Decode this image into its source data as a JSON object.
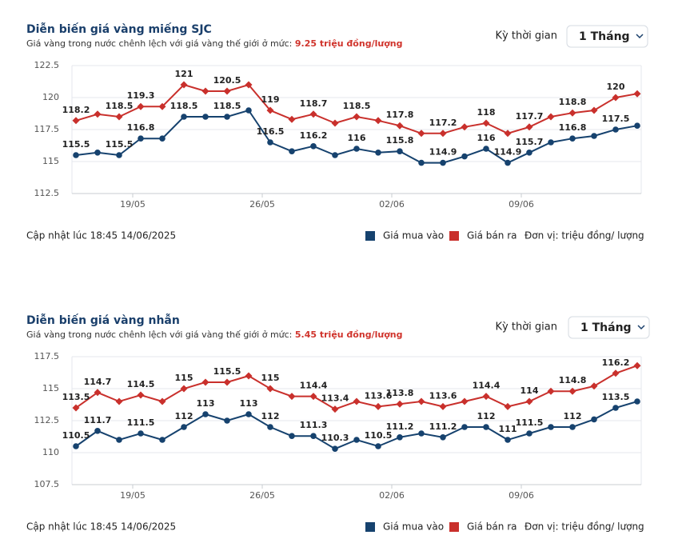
{
  "chart_data": [
    {
      "type": "line",
      "title": "Diễn biến giá vàng miếng SJC",
      "subtitle": "Giá vàng trong nước chênh lệch với giá vàng thế giới ở mức:",
      "subtitle_highlight": "9.25 triệu đồng/lượng",
      "period_label": "Kỳ thời gian",
      "period_value": "1 Tháng",
      "updated": "Cập nhật lúc 18:45 14/06/2025",
      "unit": "Đơn vị: triệu đồng/ lượng",
      "categories": [
        null,
        null,
        null,
        "19/05",
        null,
        null,
        null,
        null,
        null,
        "26/05",
        null,
        null,
        null,
        null,
        null,
        "02/06",
        null,
        null,
        null,
        null,
        null,
        "09/06",
        null,
        null,
        null,
        null,
        null
      ],
      "ylim": [
        112.5,
        122.5
      ],
      "yticks": [
        112.5,
        115,
        117.5,
        120,
        122.5
      ],
      "grid": true,
      "series": [
        {
          "name": "Giá mua vào",
          "color": "#16426e",
          "values": [
            115.5,
            115.7,
            115.5,
            116.8,
            116.8,
            118.5,
            118.5,
            118.5,
            119,
            116.5,
            115.8,
            116.2,
            115.5,
            116,
            115.7,
            115.8,
            114.9,
            114.9,
            115.4,
            116,
            114.9,
            115.7,
            116.5,
            116.8,
            117,
            117.5,
            117.8
          ],
          "value_labels": [
            "115.5",
            null,
            "115.5",
            "116.8",
            null,
            "118.5",
            null,
            "118.5",
            null,
            "116.5",
            null,
            "116.2",
            null,
            "116",
            null,
            "115.8",
            null,
            "114.9",
            null,
            "116",
            "114.9",
            "115.7",
            null,
            "116.8",
            null,
            "117.5",
            null
          ]
        },
        {
          "name": "Giá bán ra",
          "color": "#c9302c",
          "values": [
            118.2,
            118.7,
            118.5,
            119.3,
            119.3,
            121,
            120.5,
            120.5,
            121,
            119,
            118.3,
            118.7,
            118,
            118.5,
            118.2,
            117.8,
            117.2,
            117.2,
            117.7,
            118,
            117.2,
            117.7,
            118.5,
            118.8,
            119,
            120,
            120.3
          ],
          "value_labels": [
            "118.2",
            null,
            "118.5",
            "119.3",
            null,
            "121",
            null,
            "120.5",
            null,
            "119",
            null,
            "118.7",
            null,
            "118.5",
            null,
            "117.8",
            null,
            "117.2",
            null,
            "118",
            null,
            "117.7",
            null,
            "118.8",
            null,
            "120",
            null
          ]
        }
      ]
    },
    {
      "type": "line",
      "title": "Diễn biến giá vàng nhẫn",
      "subtitle": "Giá vàng trong nước chênh lệch với giá vàng thế giới ở mức:",
      "subtitle_highlight": "5.45 triệu đồng/lượng",
      "period_label": "Kỳ thời gian",
      "period_value": "1 Tháng",
      "updated": "Cập nhật lúc 18:45 14/06/2025",
      "unit": "Đơn vị: triệu đồng/ lượng",
      "categories": [
        null,
        null,
        null,
        "19/05",
        null,
        null,
        null,
        null,
        null,
        "26/05",
        null,
        null,
        null,
        null,
        null,
        "02/06",
        null,
        null,
        null,
        null,
        null,
        "09/06",
        null,
        null,
        null,
        null,
        null
      ],
      "ylim": [
        107.5,
        117.5
      ],
      "yticks": [
        107.5,
        110,
        112.5,
        115,
        117.5
      ],
      "grid": true,
      "series": [
        {
          "name": "Giá mua vào",
          "color": "#16426e",
          "values": [
            110.5,
            111.7,
            111,
            111.5,
            111,
            112,
            113,
            112.5,
            113,
            112,
            111.3,
            111.3,
            110.3,
            111,
            110.5,
            111.2,
            111.5,
            111.2,
            112,
            112,
            111,
            111.5,
            112,
            112,
            112.6,
            113.5,
            114
          ],
          "value_labels": [
            "110.5",
            "111.7",
            null,
            "111.5",
            null,
            "112",
            "113",
            null,
            "113",
            "112",
            null,
            "111.3",
            "110.3",
            null,
            "110.5",
            "111.2",
            null,
            "111.2",
            null,
            "112",
            "111",
            "111.5",
            null,
            "112",
            null,
            "113.5",
            null
          ]
        },
        {
          "name": "Giá bán ra",
          "color": "#c9302c",
          "values": [
            113.5,
            114.7,
            114,
            114.5,
            114,
            115,
            115.5,
            115.5,
            116,
            115,
            114.4,
            114.4,
            113.4,
            114,
            113.6,
            113.8,
            114,
            113.6,
            114,
            114.4,
            113.6,
            114,
            114.8,
            114.8,
            115.2,
            116.2,
            116.8
          ],
          "value_labels": [
            "113.5",
            "114.7",
            null,
            "114.5",
            null,
            "115",
            null,
            "115.5",
            null,
            "115",
            null,
            "114.4",
            "113.4",
            null,
            "113.6",
            "113.8",
            null,
            "113.6",
            null,
            "114.4",
            null,
            "114",
            null,
            "114.8",
            null,
            "116.2",
            null
          ]
        }
      ]
    }
  ]
}
